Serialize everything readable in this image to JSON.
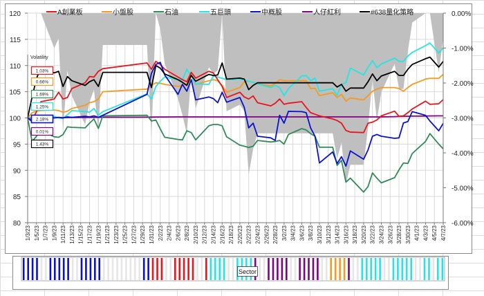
{
  "chart_data": {
    "type": "line",
    "title": "",
    "left_axis": {
      "ylim": [
        80,
        120
      ],
      "ticks": [
        "80",
        "85",
        "90",
        "95",
        "100",
        "105",
        "110",
        "115",
        "120"
      ]
    },
    "right_axis": {
      "ylim": [
        -6,
        0
      ],
      "unit": "%",
      "ticks": [
        "0.00%",
        "-1.00%",
        "-2.00%",
        "-3.00%",
        "-4.00%",
        "-5.00%",
        "-6.00%"
      ]
    },
    "x_tick_labels": [
      "1/3/23",
      "1/5/23",
      "1/7/23",
      "1/9/23",
      "1/11/23",
      "1/13/23",
      "1/15/23",
      "1/17/23",
      "1/19/23",
      "1/21/23",
      "1/23/23",
      "1/25/23",
      "1/27/23",
      "1/29/23",
      "1/31/23",
      "2/2/23",
      "2/4/23",
      "2/6/23",
      "2/8/23",
      "2/10/23",
      "2/12/23",
      "2/14/23",
      "2/16/23",
      "2/18/23",
      "2/20/23",
      "2/22/23",
      "2/24/23",
      "2/26/23",
      "2/28/23",
      "3/2/23",
      "3/4/23",
      "3/6/23",
      "3/8/23",
      "3/10/23",
      "3/12/23",
      "3/14/23",
      "3/16/23",
      "3/18/23",
      "3/20/23",
      "3/22/23",
      "3/24/23",
      "3/26/23",
      "3/28/23",
      "3/30/23",
      "4/1/23",
      "4/3/23",
      "4/5/23",
      "4/7/23"
    ],
    "grid": true,
    "legend_placement": "top",
    "dates": [
      "1/3/23",
      "1/4/23",
      "1/5/23",
      "1/6/23",
      "1/9/23",
      "1/10/23",
      "1/11/23",
      "1/12/23",
      "1/13/23",
      "1/16/23",
      "1/17/23",
      "1/18/23",
      "1/19/23",
      "1/20/23",
      "1/30/23",
      "1/31/23",
      "2/1/23",
      "2/2/23",
      "2/3/23",
      "2/6/23",
      "2/7/23",
      "2/8/23",
      "2/9/23",
      "2/10/23",
      "2/13/23",
      "2/14/23",
      "2/15/23",
      "2/16/23",
      "2/17/23",
      "2/20/23",
      "2/21/23",
      "2/22/23",
      "2/23/23",
      "2/24/23",
      "2/27/23",
      "2/28/23",
      "3/1/23",
      "3/2/23",
      "3/3/23",
      "3/6/23",
      "3/7/23",
      "3/8/23",
      "3/9/23",
      "3/10/23",
      "3/13/23",
      "3/14/23",
      "3/15/23",
      "3/16/23",
      "3/17/23",
      "3/20/23",
      "3/21/23",
      "3/22/23",
      "3/23/23",
      "3/24/23",
      "3/27/23",
      "3/28/23",
      "3/29/23",
      "3/30/23",
      "3/31/23",
      "4/3/23",
      "4/4/23",
      "4/6/23",
      "4/7/23"
    ],
    "drawdown_series": {
      "axis": "right",
      "color": "#bfbfbf",
      "type": "area",
      "values": [
        0,
        0,
        0,
        0,
        -1.0,
        -0.73,
        -3.37,
        -1.64,
        -2.37,
        -3.19,
        -2.55,
        -2.19,
        -3.37,
        -0.91,
        -0.91,
        -3.56,
        0,
        -0.45,
        -1.45,
        -2.45,
        -2.91,
        -3.45,
        -1.73,
        -2.73,
        -1.55,
        -1.73,
        -1.64,
        0,
        -2.81,
        -2.62,
        -2.81,
        -4.62,
        -3.89,
        -3.44,
        -3.44,
        -3.44,
        -3.44,
        -3.44,
        -3.44,
        -3.44,
        -3.44,
        -3.44,
        -3.44,
        -3.44,
        -3.44,
        -4.16,
        -3.71,
        -4.89,
        -4.34,
        -4.34,
        -3.26,
        -1.9,
        -3.08,
        -2.26,
        -1.45,
        -2.17,
        -2.17,
        -1.09,
        -0.27,
        0,
        0,
        -1.7,
        -0.72
      ]
    },
    "series": [
      {
        "name": "A創業板",
        "color": "#e8141b",
        "volatility": "1.03%",
        "values": [
          100,
          99.6,
          101.2,
          103.1,
          103.6,
          104.9,
          103.6,
          103.9,
          105.6,
          106.7,
          107.9,
          107.8,
          108.9,
          109.4,
          110.5,
          109.3,
          110.8,
          110.2,
          109.3,
          107.8,
          107.3,
          106.9,
          108.7,
          107.6,
          108.9,
          108.6,
          107.3,
          106.0,
          103.9,
          104.9,
          104.0,
          103.6,
          104.2,
          102.9,
          102.3,
          102.8,
          103.6,
          102.6,
          102.8,
          103.1,
          102.0,
          101.0,
          100.7,
          100.4,
          99.8,
          99.5,
          99.0,
          97.6,
          97.3,
          97.2,
          99.0,
          99.2,
          99.6,
          100.4,
          101.3,
          100.3,
          100.4,
          101.0,
          101.7,
          103.2,
          102.6,
          102.7,
          103.5
        ]
      },
      {
        "name": "小盤股",
        "color": "#f59a1c",
        "volatility": "0.66%",
        "values": [
          100,
          101.0,
          101.3,
          101.4,
          101.5,
          101.4,
          101.1,
          101.3,
          101.8,
          102.4,
          102.9,
          103.1,
          103.6,
          105.0,
          105.5,
          106.2,
          106.7,
          106.6,
          106.4,
          106.0,
          106.2,
          106.5,
          108.4,
          106.4,
          107.1,
          107.3,
          107.1,
          106.2,
          104.9,
          105.8,
          106.9,
          107.0,
          106.8,
          106.5,
          106.1,
          106.6,
          107.3,
          107.1,
          107.1,
          107.1,
          107.1,
          105.6,
          105.65,
          104.25,
          104.8,
          103.9,
          104.5,
          103.2,
          103.8,
          103.45,
          104.25,
          105.1,
          105.5,
          105.8,
          105.8,
          105.6,
          105.1,
          105.8,
          106.4,
          107.4,
          107.55,
          107.55,
          108.3
        ]
      },
      {
        "name": "石油",
        "color": "#2e8b57",
        "volatility": "1.69%",
        "values": [
          100,
          95.5,
          96.5,
          97.6,
          96.4,
          96.3,
          96.8,
          98.3,
          98.2,
          98.1,
          99.0,
          99.8,
          98.0,
          100.4,
          100.5,
          99.4,
          99.6,
          97.9,
          96.3,
          95.9,
          95.8,
          97.55,
          97.2,
          95.8,
          98.5,
          98.75,
          98.75,
          98.5,
          96.4,
          94.8,
          94.6,
          94.35,
          94.6,
          95.7,
          95.4,
          95.5,
          95.7,
          95.0,
          96.85,
          97.95,
          97.7,
          97.0,
          96.5,
          94.4,
          94.4,
          90.95,
          91.9,
          87.75,
          88.5,
          85.85,
          86.9,
          89.5,
          88.5,
          87.6,
          88.6,
          90.1,
          91.4,
          91.3,
          93.2,
          95.5,
          97.0,
          95.0,
          94.1
        ]
      },
      {
        "name": "五巨頭",
        "color": "#22e6e6",
        "volatility": "1.25%",
        "values": [
          100,
          100.1,
          100.2,
          100.2,
          100.3,
          100.0,
          99.9,
          100.6,
          101.4,
          101.2,
          101.1,
          101.8,
          100.5,
          101.2,
          104.6,
          103.6,
          106.0,
          107.0,
          107.8,
          107.3,
          107.3,
          109.3,
          108.0,
          106.5,
          106.4,
          108.0,
          107.8,
          107.55,
          107.3,
          107.4,
          107.3,
          107.0,
          106.8,
          106.5,
          105.8,
          106.2,
          105.8,
          104.25,
          105.6,
          108.0,
          108.1,
          107.1,
          107.6,
          105.1,
          105.6,
          104.3,
          106.4,
          106.7,
          109.5,
          108.2,
          109.7,
          110.9,
          109.6,
          110.3,
          111.4,
          110.8,
          110.8,
          111.8,
          112.5,
          113.8,
          114.3,
          112.4,
          113.4
        ]
      },
      {
        "name": "中概股",
        "color": "#0a10d0",
        "volatility": "2.18%",
        "values": [
          100,
          99.3,
          99.6,
          99.8,
          100,
          100.1,
          100,
          100.2,
          100.1,
          100.3,
          100.2,
          100.4,
          100.1,
          100.5,
          104.5,
          108.5,
          110.2,
          110.6,
          108.2,
          104.5,
          106.4,
          105.1,
          107.3,
          103.45,
          104.0,
          103.7,
          102.9,
          104.9,
          103.0,
          103.9,
          102.0,
          98.1,
          99.0,
          96.5,
          96.2,
          95.7,
          100.5,
          99.0,
          101.25,
          101.2,
          101.0,
          98.1,
          96.5,
          91.4,
          93.5,
          91.3,
          92.6,
          90.8,
          93.7,
          92.1,
          93.9,
          96.5,
          96.85,
          96.5,
          96.1,
          96.2,
          99.05,
          99.3,
          101.2,
          100.5,
          99.4,
          97.55,
          98.97
        ]
      },
      {
        "name": "人仔紅利",
        "color": "#800080",
        "volatility": "0.01%",
        "values": [
          100,
          100.01,
          100.02,
          100.03,
          100.04,
          100.05,
          100.06,
          100.07,
          100.08,
          100.09,
          100.1,
          100.11,
          100.12,
          100.13,
          100.15,
          100.16,
          100.17,
          100.18,
          100.19,
          100.2,
          100.2,
          100.2,
          100.2,
          100.2,
          100.2,
          100.2,
          100.2,
          100.2,
          100.2,
          100.2,
          100.2,
          100.2,
          100.2,
          100.2,
          100.2,
          100.2,
          100.2,
          100.2,
          100.2,
          100.2,
          100.2,
          100.2,
          100.2,
          100.2,
          100.2,
          100.2,
          100.2,
          100.2,
          100.2,
          100.2,
          100.2,
          100.2,
          100.2,
          100.2,
          100.25,
          100.28,
          100.3,
          100.32,
          100.34,
          100.36,
          100.38,
          100.4,
          100.4
        ]
      },
      {
        "name": "#638量化策略",
        "color": "#000000",
        "volatility": "1.43%",
        "values": [
          100,
          104,
          107.5,
          109.7,
          108.6,
          108.9,
          106.0,
          107.9,
          107.1,
          106.2,
          106.9,
          107.3,
          106.0,
          108.7,
          108.7,
          105.8,
          110.0,
          109.5,
          108.4,
          107.3,
          106.8,
          106.2,
          108.1,
          107.0,
          108.3,
          108.1,
          108.2,
          110.5,
          107.4,
          107.6,
          107.4,
          105.4,
          106.2,
          106.7,
          106.7,
          106.7,
          106.7,
          106.7,
          106.7,
          106.7,
          106.7,
          106.7,
          106.7,
          106.7,
          106.7,
          105.9,
          106.4,
          105.1,
          105.7,
          105.7,
          106.9,
          108.4,
          107.1,
          108.0,
          108.9,
          108.1,
          108.1,
          109.3,
          110.2,
          111.3,
          111.6,
          109.7,
          110.8
        ]
      }
    ],
    "volatility_title": "Volatility",
    "sector_strip": {
      "label": "Sector",
      "first_date": "1/3/23",
      "last_date": "4/7/23",
      "by_trading_date": [
        "中概股",
        "中概股",
        "中概股",
        "中概股",
        "中概股",
        "中概股",
        "中概股",
        "中概股",
        "中概股",
        "中概股",
        "中概股",
        "中概股",
        "中概股",
        "中概股",
        "中概股",
        "中概股",
        "A創業板",
        "A創業板",
        "A創業板",
        "A創業板",
        "A創業板",
        "A創業板",
        "A創業板",
        "A創業板",
        "A創業板",
        "五巨頭",
        "五巨頭",
        "五巨頭",
        "五巨頭",
        "五巨頭",
        "五巨頭",
        "五巨頭",
        "五巨頭",
        "人仔紅利",
        "人仔紅利",
        "人仔紅利",
        "人仔紅利",
        "人仔紅利",
        "人仔紅利",
        "人仔紅利",
        "人仔紅利",
        "人仔紅利",
        "人仔紅利",
        "人仔紅利",
        "小盤股",
        "小盤股",
        "小盤股",
        "小盤股",
        "人仔紅利",
        "五巨頭",
        "五巨頭",
        "五巨頭",
        "五巨頭",
        "五巨頭",
        "五巨頭",
        "五巨頭",
        "五巨頭",
        "五巨頭",
        "五巨頭",
        "五巨頭",
        "五巨頭",
        "五巨頭",
        "五巨頭"
      ]
    }
  }
}
